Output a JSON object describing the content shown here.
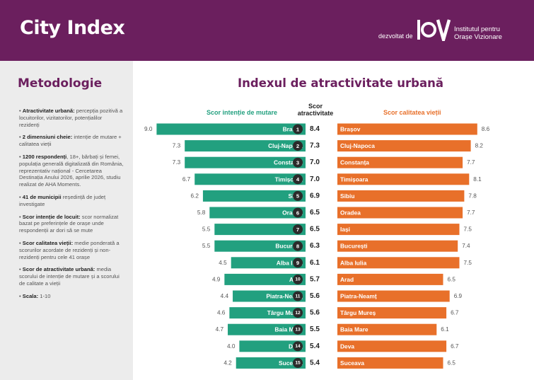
{
  "header": {
    "title": "City Index",
    "developed_by": "dezvoltat de",
    "org_line1": "Institutul pentru",
    "org_line2": "Orașe Vizionare",
    "bg_color": "#6b1f5e"
  },
  "sidebar": {
    "title": "Metodologie",
    "items": [
      {
        "bold": "Atractivitate urbană:",
        "text": "percepția pozitivă a locuitorilor, vizitatorilor, potențialilor rezidenți"
      },
      {
        "bold": "2 dimensiuni cheie:",
        "text": "intenție de mutare + calitatea vieții"
      },
      {
        "bold": "1200 respondenți",
        "text": ", 18+, bărbați și femei, populația generală digitalizată din România, reprezentativ național - Cercetarea Destinația Anului 2026, aprilie 2026, studiu realizat de AHA Moments."
      },
      {
        "bold": "41 de municipii",
        "text": "reședință de județ investigate"
      },
      {
        "bold": "Scor intenție de locuit:",
        "text": "scor normalizat bazat pe preferințele de orașe unde respondenții ar dori să se mute"
      },
      {
        "bold": "Scor calitatea vieții:",
        "text": "medie ponderată a scorurilor acordate de rezidenți și non-rezidenți pentru cele 41 orașe"
      },
      {
        "bold": "Scor de atractivitate urbană:",
        "text": "media scorului de intenție de mutare și a scorului de calitate a vieții"
      },
      {
        "bold": "Scala:",
        "text": "1-10"
      }
    ]
  },
  "chart_data": {
    "type": "bar",
    "title": "Indexul de atractivitate urbană",
    "left_label": "Scor intenție de mutare",
    "center_label_line1": "Scor",
    "center_label_line2": "atractivitate",
    "right_label": "Scor calitatea vieții",
    "left_color": "#22a07f",
    "right_color": "#e8702a",
    "rank_color": "#2b2b2b",
    "xlim": [
      0,
      10
    ],
    "categories": [
      "Brașov",
      "Cluj-Napoca",
      "Constanța",
      "Timișoara",
      "Sibiu",
      "Oradea",
      "Iași",
      "București",
      "Alba Iulia",
      "Arad",
      "Piatra-Neamț",
      "Târgu Mureș",
      "Baia Mare",
      "Deva",
      "Suceava"
    ],
    "ranks": [
      "1",
      "2",
      "3",
      "4",
      "5",
      "6",
      "7",
      "8",
      "9",
      "10",
      "11",
      "12",
      "13",
      "14",
      "15"
    ],
    "left_labels": [
      "9.0",
      "7.3",
      "7.3",
      "6.7",
      "6.2",
      "5.8",
      "5.5",
      "5.5",
      "4.5",
      "4.9",
      "4.4",
      "4.6",
      "4.7",
      "4.0",
      "4.2"
    ],
    "center_labels": [
      "8.4",
      "7.3",
      "7.0",
      "7.0",
      "6.9",
      "6.5",
      "6.5",
      "6.3",
      "6.1",
      "5.7",
      "5.6",
      "5.6",
      "5.5",
      "5.4",
      "5.4"
    ],
    "right_labels": [
      "8.6",
      "8.2",
      "7.7",
      "8.1",
      "7.8",
      "7.7",
      "7.5",
      "7.4",
      "7.5",
      "6.5",
      "6.9",
      "6.7",
      "6.1",
      "6.7",
      "6.5"
    ],
    "series": [
      {
        "name": "Scor intenție de mutare",
        "values": [
          9.0,
          7.3,
          7.3,
          6.7,
          6.2,
          5.8,
          5.5,
          5.5,
          4.5,
          4.9,
          4.4,
          4.6,
          4.7,
          4.0,
          4.2
        ]
      },
      {
        "name": "Scor atractivitate",
        "values": [
          8.4,
          7.3,
          7.0,
          7.0,
          6.9,
          6.5,
          6.5,
          6.3,
          6.1,
          5.7,
          5.6,
          5.6,
          5.5,
          5.4,
          5.4
        ]
      },
      {
        "name": "Scor calitatea vieții",
        "values": [
          8.6,
          8.2,
          7.7,
          8.1,
          7.8,
          7.7,
          7.5,
          7.4,
          7.5,
          6.5,
          6.9,
          6.7,
          6.1,
          6.7,
          6.5
        ]
      }
    ]
  }
}
